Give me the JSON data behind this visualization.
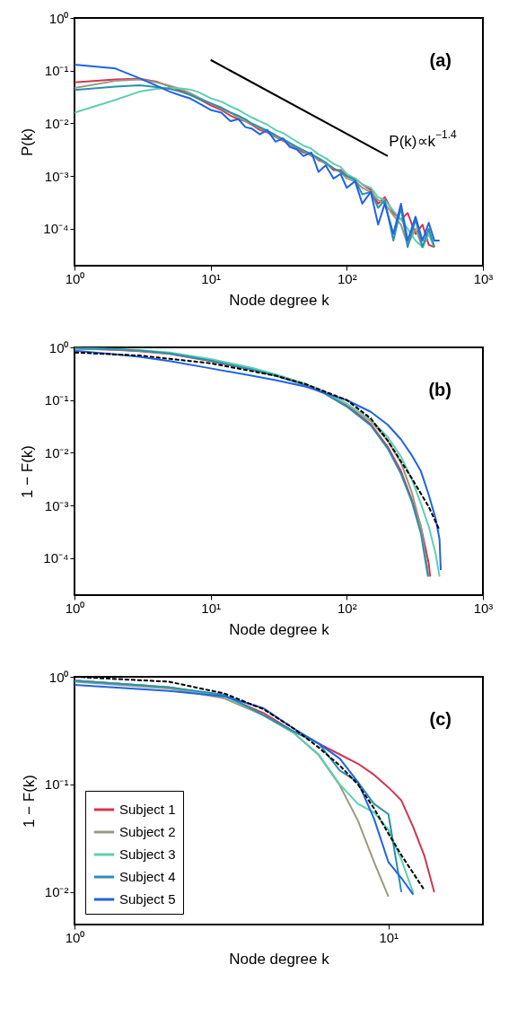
{
  "chart_data": [
    {
      "type": "line",
      "xlabel": "Node degree k",
      "ylabel": "P(k)",
      "log": "xy",
      "xlim": [
        1,
        1000
      ],
      "ylim": [
        2e-05,
        1
      ],
      "xticks": [
        {
          "value": 1,
          "label": "10⁰"
        },
        {
          "value": 10,
          "label": "10¹"
        },
        {
          "value": 100,
          "label": "10²"
        },
        {
          "value": 1000,
          "label": "10³"
        }
      ],
      "yticks": [
        {
          "value": 0.0001,
          "label": "10⁻⁴"
        },
        {
          "value": 0.001,
          "label": "10⁻³"
        },
        {
          "value": 0.01,
          "label": "10⁻²"
        },
        {
          "value": 0.1,
          "label": "10⁻¹"
        },
        {
          "value": 1,
          "label": "10⁰"
        }
      ],
      "annotations": [
        "(a)",
        "P(k)∝k$^{−1.4}$"
      ],
      "series": [
        {
          "color": "#d0364f",
          "x": [
            1,
            2,
            3,
            4,
            5,
            6,
            7,
            8,
            10,
            12,
            14,
            16,
            18,
            20,
            23,
            26,
            30,
            34,
            38,
            43,
            48,
            55,
            62,
            70,
            80,
            90,
            100,
            115,
            130,
            150,
            170,
            190,
            220,
            250,
            280,
            320,
            360,
            400,
            440
          ],
          "values": [
            0.06,
            0.068,
            0.07,
            0.062,
            0.05,
            0.042,
            0.036,
            0.03,
            0.022,
            0.018,
            0.014,
            0.012,
            0.011,
            0.0095,
            0.0075,
            0.0068,
            0.0055,
            0.0047,
            0.004,
            0.0034,
            0.0028,
            0.0026,
            0.002,
            0.0018,
            0.0013,
            0.0013,
            0.001,
            0.0009,
            0.0007,
            0.00055,
            0.0003,
            0.0004,
            0.0002,
            0.00015,
            0.0002,
            8e-05,
            0.00012,
            5e-05,
            4.5e-05
          ]
        },
        {
          "color": "#9a9a80",
          "x": [
            1,
            2,
            3,
            4,
            5,
            6,
            7,
            8,
            10,
            12,
            14,
            16,
            18,
            20,
            23,
            26,
            30,
            34,
            38,
            43,
            48,
            55,
            62,
            70,
            80,
            90,
            100,
            115,
            130,
            150,
            170,
            190,
            220,
            250,
            280,
            320,
            360,
            400,
            440
          ],
          "values": [
            0.047,
            0.064,
            0.068,
            0.06,
            0.052,
            0.045,
            0.038,
            0.032,
            0.024,
            0.019,
            0.016,
            0.013,
            0.011,
            0.0098,
            0.008,
            0.007,
            0.0056,
            0.0048,
            0.0041,
            0.0035,
            0.003,
            0.0024,
            0.0021,
            0.0017,
            0.0014,
            0.0012,
            0.0009,
            0.0008,
            0.0006,
            0.0005,
            0.00035,
            0.0003,
            0.00018,
            0.00012,
            5e-05,
            0.0001,
            4.5e-05,
            8e-05,
            4.5e-05
          ]
        },
        {
          "color": "#5fcfb0",
          "x": [
            1,
            2,
            3,
            4,
            5,
            6,
            7,
            8,
            10,
            12,
            14,
            16,
            18,
            20,
            23,
            26,
            30,
            34,
            38,
            43,
            48,
            55,
            62,
            70,
            80,
            90,
            100,
            115,
            130,
            150,
            170,
            190,
            220,
            250,
            280,
            320,
            360,
            400,
            440
          ],
          "values": [
            0.016,
            0.028,
            0.04,
            0.045,
            0.047,
            0.046,
            0.044,
            0.04,
            0.03,
            0.026,
            0.021,
            0.018,
            0.015,
            0.013,
            0.011,
            0.0095,
            0.0075,
            0.0066,
            0.0055,
            0.0045,
            0.0038,
            0.0033,
            0.0026,
            0.0022,
            0.0017,
            0.0015,
            0.0011,
            0.0009,
            0.0007,
            0.0006,
            0.0004,
            0.00035,
            0.00022,
            0.00015,
            0.0001,
            6e-05,
            4.5e-05,
            8e-05,
            4.5e-05
          ]
        },
        {
          "color": "#2b8fae",
          "x": [
            1,
            2,
            3,
            4,
            5,
            6,
            7,
            8,
            10,
            12,
            14,
            16,
            18,
            20,
            23,
            26,
            30,
            34,
            38,
            43,
            48,
            55,
            62,
            70,
            80,
            90,
            100,
            115,
            130,
            150,
            170,
            190,
            220,
            250,
            280,
            320,
            360,
            400,
            440
          ],
          "values": [
            0.043,
            0.05,
            0.053,
            0.049,
            0.045,
            0.04,
            0.035,
            0.03,
            0.024,
            0.02,
            0.016,
            0.014,
            0.012,
            0.01,
            0.0085,
            0.0073,
            0.006,
            0.005,
            0.0043,
            0.0036,
            0.0031,
            0.0026,
            0.0022,
            0.0018,
            0.0014,
            0.0012,
            0.001,
            0.00085,
            0.00045,
            0.0005,
            0.00025,
            0.00035,
            6e-05,
            0.00025,
            4.5e-05,
            0.00015,
            4.5e-05,
            0.0001,
            4.5e-05
          ]
        },
        {
          "color": "#1f63e6",
          "x": [
            1,
            2,
            3,
            4,
            5,
            6,
            7,
            8,
            10,
            12,
            14,
            16,
            18,
            20,
            23,
            26,
            30,
            34,
            38,
            43,
            48,
            55,
            62,
            70,
            80,
            90,
            100,
            115,
            130,
            150,
            170,
            190,
            220,
            250,
            280,
            320,
            360,
            400,
            440,
            480
          ],
          "values": [
            0.13,
            0.11,
            0.072,
            0.052,
            0.04,
            0.034,
            0.03,
            0.025,
            0.018,
            0.016,
            0.011,
            0.012,
            0.0085,
            0.008,
            0.0062,
            0.0075,
            0.0045,
            0.0052,
            0.0036,
            0.0032,
            0.0024,
            0.0028,
            0.0012,
            0.0016,
            0.0009,
            0.0011,
            0.0006,
            0.0008,
            0.0003,
            0.0005,
            0.00012,
            0.0003,
            8e-05,
            0.0003,
            6e-05,
            0.00017,
            6e-05,
            0.00013,
            6e-05,
            6e-05
          ]
        },
        {
          "color": "#000000",
          "x": [
            10,
            200
          ],
          "values": [
            0.16,
            0.0024
          ]
        }
      ]
    },
    {
      "type": "line",
      "xlabel": "Node degree k",
      "ylabel": "1 − F(k)",
      "log": "xy",
      "xlim": [
        1,
        1000
      ],
      "ylim": [
        2e-05,
        1
      ],
      "xticks": [
        {
          "value": 1,
          "label": "10⁰"
        },
        {
          "value": 10,
          "label": "10¹"
        },
        {
          "value": 100,
          "label": "10²"
        },
        {
          "value": 1000,
          "label": "10³"
        }
      ],
      "yticks": [
        {
          "value": 0.0001,
          "label": "10⁻⁴"
        },
        {
          "value": 0.001,
          "label": "10⁻³"
        },
        {
          "value": 0.01,
          "label": "10⁻²"
        },
        {
          "value": 0.1,
          "label": "10⁻¹"
        },
        {
          "value": 1,
          "label": "10⁰"
        }
      ],
      "annotations": [
        "(b)"
      ],
      "series": [
        {
          "color": "#d0364f",
          "x": [
            1,
            2,
            3,
            5,
            10,
            20,
            30,
            50,
            70,
            100,
            150,
            200,
            250,
            300,
            350,
            380,
            400,
            410
          ],
          "values": [
            0.95,
            0.9,
            0.85,
            0.75,
            0.55,
            0.38,
            0.3,
            0.2,
            0.14,
            0.08,
            0.035,
            0.013,
            0.0045,
            0.0013,
            0.0004,
            0.00015,
            8e-05,
            4.5e-05
          ]
        },
        {
          "color": "#9a9a80",
          "x": [
            1,
            2,
            3,
            5,
            10,
            20,
            30,
            50,
            70,
            100,
            150,
            200,
            250,
            300,
            350,
            400
          ],
          "values": [
            0.95,
            0.91,
            0.86,
            0.76,
            0.57,
            0.39,
            0.3,
            0.2,
            0.14,
            0.085,
            0.04,
            0.017,
            0.0065,
            0.0018,
            0.0004,
            4.5e-05
          ]
        },
        {
          "color": "#5fcfb0",
          "x": [
            1,
            2,
            3,
            5,
            10,
            20,
            30,
            50,
            70,
            100,
            150,
            200,
            250,
            300,
            350,
            400,
            450,
            480
          ],
          "values": [
            0.97,
            0.93,
            0.89,
            0.8,
            0.6,
            0.41,
            0.31,
            0.2,
            0.14,
            0.085,
            0.042,
            0.02,
            0.0085,
            0.0032,
            0.0011,
            0.0004,
            0.00012,
            4.5e-05
          ]
        },
        {
          "color": "#2b8fae",
          "x": [
            1,
            2,
            3,
            5,
            10,
            20,
            30,
            50,
            70,
            100,
            150,
            200,
            250,
            300,
            350,
            395
          ],
          "values": [
            0.96,
            0.92,
            0.87,
            0.77,
            0.56,
            0.38,
            0.29,
            0.19,
            0.13,
            0.075,
            0.033,
            0.012,
            0.004,
            0.0012,
            0.0003,
            4.5e-05
          ]
        },
        {
          "color": "#1f63e6",
          "x": [
            1,
            2,
            3,
            5,
            10,
            20,
            30,
            50,
            70,
            100,
            150,
            200,
            250,
            300,
            350,
            400,
            450,
            480,
            490
          ],
          "values": [
            0.86,
            0.74,
            0.66,
            0.55,
            0.4,
            0.29,
            0.24,
            0.18,
            0.135,
            0.1,
            0.06,
            0.034,
            0.018,
            0.009,
            0.0045,
            0.0016,
            0.00056,
            0.00023,
            6e-05
          ]
        },
        {
          "color": "#000000",
          "line_style": "dashed",
          "x": [
            1,
            3,
            10,
            30,
            50,
            100,
            150,
            200,
            300,
            400,
            480
          ],
          "values": [
            0.8,
            0.7,
            0.5,
            0.29,
            0.2,
            0.1,
            0.045,
            0.017,
            0.0033,
            0.00095,
            0.00034
          ]
        }
      ]
    },
    {
      "type": "line",
      "xlabel": "Node degree k",
      "ylabel": "1 − F(k)",
      "log": "xy",
      "xlim": [
        1,
        20
      ],
      "ylim": [
        0.005,
        1
      ],
      "legend": "bottom left",
      "xticks": [
        {
          "value": 1,
          "label": "10⁰"
        },
        {
          "value": 10,
          "label": "10¹"
        }
      ],
      "yticks": [
        {
          "value": 0.01,
          "label": "10⁻²"
        },
        {
          "value": 0.1,
          "label": "10⁻¹"
        },
        {
          "value": 1,
          "label": "10⁰"
        }
      ],
      "annotations": [
        "(c)"
      ],
      "series": [
        {
          "name": "Subject 1",
          "color": "#d0364f",
          "x": [
            1,
            2,
            3,
            4,
            5,
            6,
            7,
            8,
            9,
            10,
            11,
            12,
            13,
            14
          ],
          "values": [
            0.92,
            0.8,
            0.66,
            0.46,
            0.31,
            0.24,
            0.19,
            0.156,
            0.123,
            0.094,
            0.071,
            0.04,
            0.022,
            0.01
          ]
        },
        {
          "name": "Subject 2",
          "color": "#9a9a80",
          "x": [
            1,
            2,
            3,
            4,
            5,
            6,
            7,
            8,
            9,
            10
          ],
          "values": [
            0.9,
            0.78,
            0.63,
            0.44,
            0.3,
            0.187,
            0.098,
            0.046,
            0.019,
            0.0091
          ]
        },
        {
          "name": "Subject 3",
          "color": "#5fcfb0",
          "x": [
            1,
            2,
            3,
            4,
            5,
            6,
            7,
            8,
            9,
            10,
            11,
            12
          ],
          "values": [
            0.92,
            0.8,
            0.66,
            0.44,
            0.3,
            0.19,
            0.1,
            0.066,
            0.055,
            0.038,
            0.02,
            0.0098
          ]
        },
        {
          "name": "Subject 4",
          "color": "#2b8fae",
          "x": [
            1,
            2,
            3,
            4,
            5,
            6,
            7,
            8,
            9,
            10,
            11
          ],
          "values": [
            0.92,
            0.8,
            0.68,
            0.44,
            0.31,
            0.24,
            0.135,
            0.105,
            0.066,
            0.053,
            0.01
          ]
        },
        {
          "name": "Subject 5",
          "color": "#1f63e6",
          "x": [
            1,
            2,
            3,
            4,
            5,
            6,
            7,
            8,
            9,
            10,
            11,
            12
          ],
          "values": [
            0.84,
            0.74,
            0.66,
            0.51,
            0.33,
            0.24,
            0.174,
            0.105,
            0.048,
            0.019,
            0.0135,
            0.0095
          ]
        },
        {
          "color": "#000000",
          "line_style": "dashed",
          "x": [
            1,
            2,
            3,
            4,
            5,
            6,
            7,
            8,
            9,
            10,
            11,
            12,
            13
          ],
          "values": [
            1,
            0.9,
            0.7,
            0.5,
            0.33,
            0.22,
            0.15,
            0.1,
            0.06,
            0.035,
            0.022,
            0.015,
            0.0105
          ]
        }
      ]
    }
  ]
}
